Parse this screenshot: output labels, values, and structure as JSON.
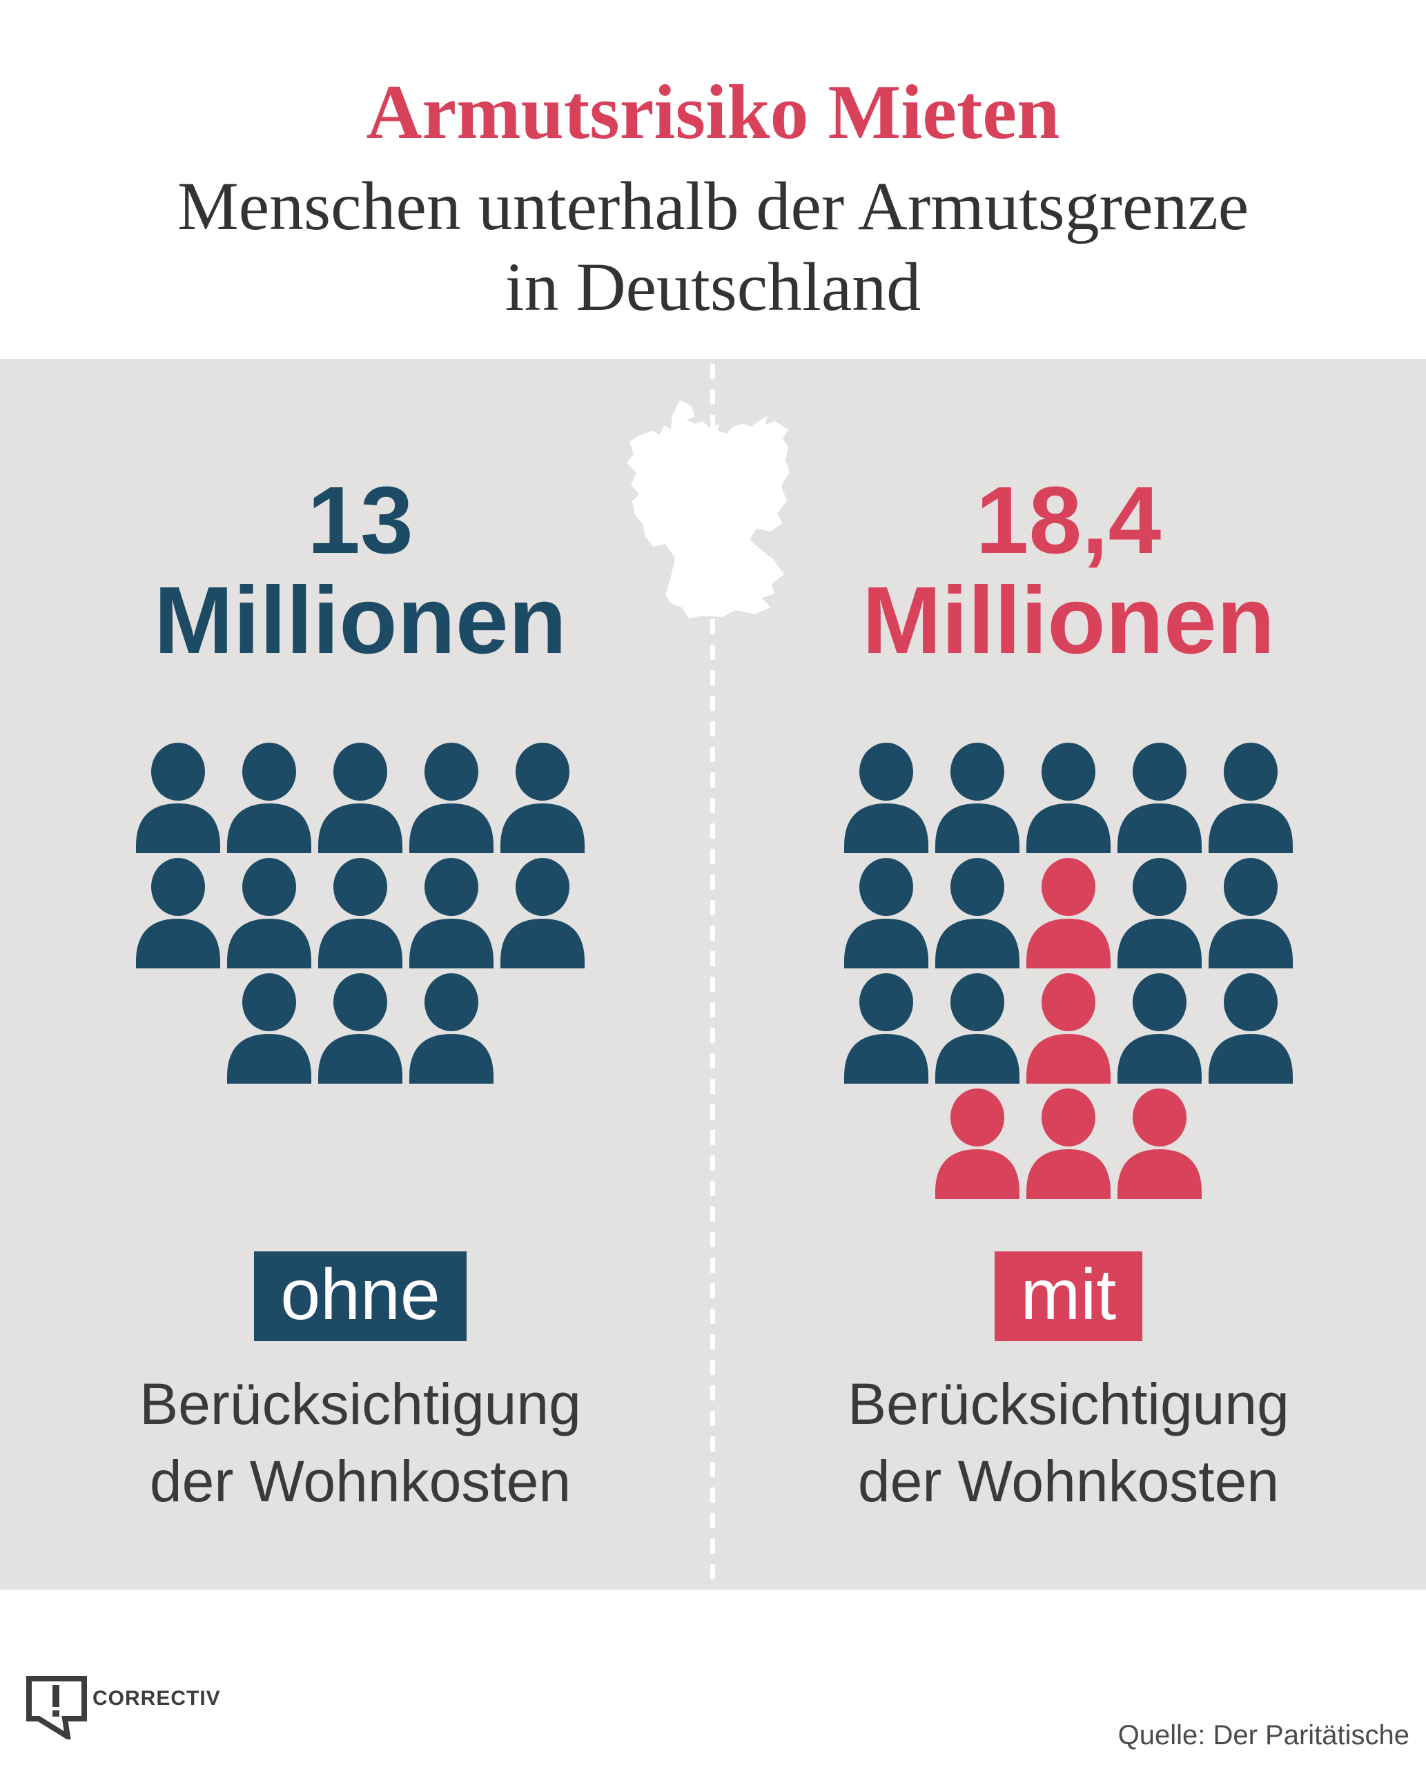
{
  "chart_data": {
    "type": "bar",
    "variant": "pictogram-icon-array",
    "title": "Armutsrisiko Mieten",
    "subtitle": "Menschen unterhalb der Armutsgrenze in Deutschland",
    "unit": "Millionen",
    "categories": [
      "ohne Berücksichtigung der Wohnkosten",
      "mit Berücksichtigung der Wohnkosten"
    ],
    "values": [
      13,
      18.4
    ],
    "icon_value": 1,
    "icon_counts": [
      {
        "total": 13,
        "highlighted_red": 0
      },
      {
        "total": 18,
        "highlighted_red": 5
      }
    ],
    "legend_position": "none",
    "source": "Quelle: Der Paritätische"
  },
  "header": {
    "title": "Armutsrisiko Mieten",
    "subtitle_line1": "Menschen unterhalb der Armutsgrenze",
    "subtitle_line2": "in Deutschland"
  },
  "panel": {
    "left": {
      "value": "13",
      "unit": "Millionen",
      "tag": "ohne",
      "caption_line1": "Berücksichtigung",
      "caption_line2": "der Wohnkosten",
      "icon_rows": [
        [
          "blue",
          "blue",
          "blue",
          "blue",
          "blue"
        ],
        [
          "blue",
          "blue",
          "blue",
          "blue",
          "blue"
        ],
        [
          "blue",
          "blue",
          "blue"
        ]
      ]
    },
    "right": {
      "value": "18,4",
      "unit": "Millionen",
      "tag": "mit",
      "caption_line1": "Berücksichtigung",
      "caption_line2": "der Wohnkosten",
      "icon_rows": [
        [
          "blue",
          "blue",
          "blue",
          "blue",
          "blue"
        ],
        [
          "blue",
          "blue",
          "red",
          "blue",
          "blue"
        ],
        [
          "blue",
          "blue",
          "red",
          "blue",
          "blue"
        ],
        [
          "red",
          "red",
          "red"
        ]
      ]
    }
  },
  "footer": {
    "logo_text": "CORRECTIV",
    "source": "Quelle: Der Paritätische"
  },
  "colors": {
    "blue": "#1d4a64",
    "red": "#d8425a",
    "title_red": "#d8415a",
    "panel_gray": "#e3e2e1",
    "text_dark": "#3a3a3a",
    "logo_dark": "#3d3d3d",
    "source_gray": "#4b4b4b",
    "map_white": "#ffffff"
  },
  "icons": {
    "germany_map": "white silhouette of Germany",
    "person": "person silhouette (head + shoulders)",
    "correctiv_logo": "speech bubble with exclamation mark"
  }
}
